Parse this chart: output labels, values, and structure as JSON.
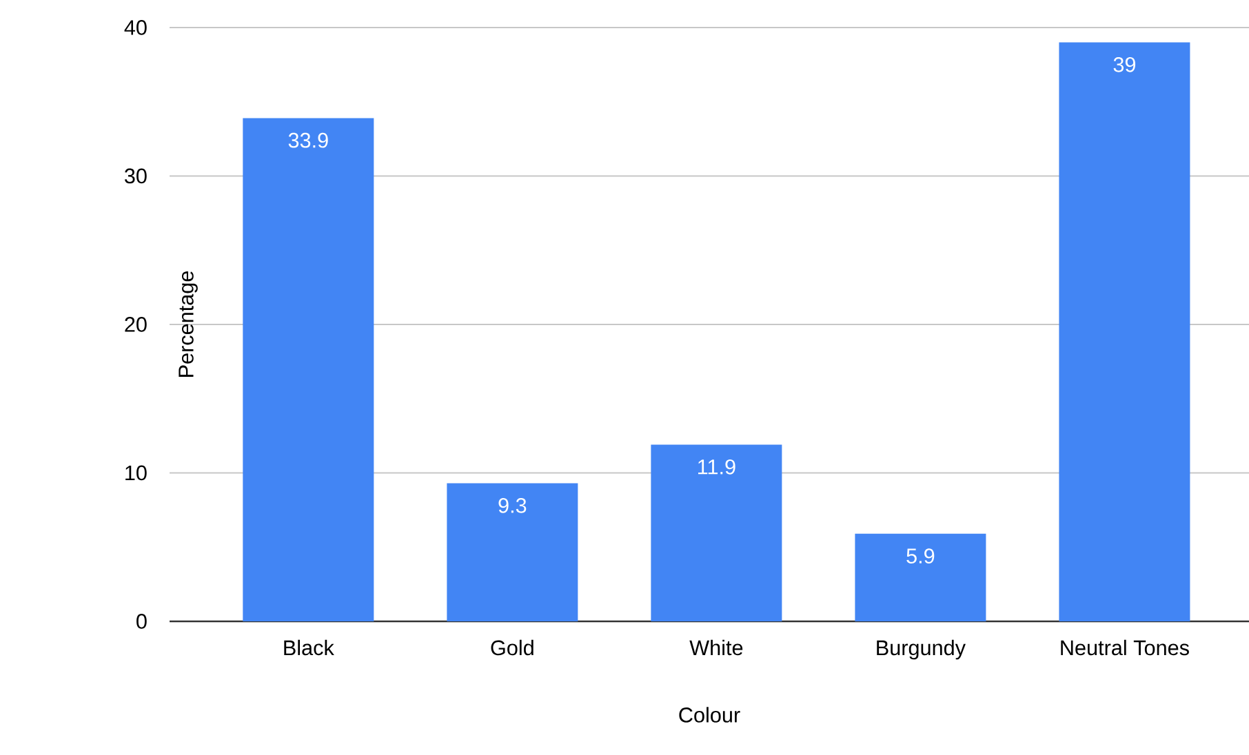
{
  "chart_data": {
    "type": "bar",
    "xlabel": "Colour",
    "ylabel": "Percentage",
    "categories": [
      "Black",
      "Gold",
      "White",
      "Burgundy",
      "Neutral Tones"
    ],
    "values": [
      33.9,
      9.3,
      11.9,
      5.9,
      39
    ],
    "color": "#4285f4",
    "ylim": [
      0,
      40
    ],
    "yticks": [
      0,
      10,
      20,
      30,
      40
    ],
    "grid": "y",
    "data_labels": true
  }
}
